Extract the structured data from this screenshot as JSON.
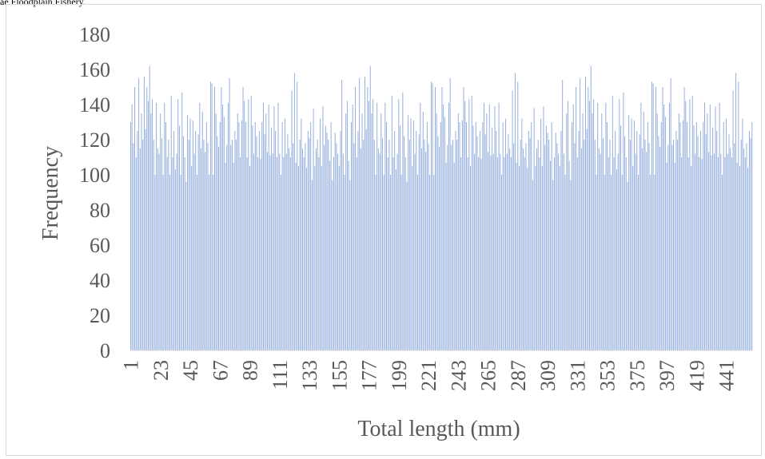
{
  "caption": "ae Floodplain Fishery.",
  "chart_data": {
    "type": "bar",
    "title": "",
    "xlabel": "Total length (mm)",
    "ylabel": "Frequency",
    "ylim": [
      0,
      180
    ],
    "y_ticks": [
      "0",
      "20",
      "40",
      "60",
      "80",
      "100",
      "120",
      "140",
      "160",
      "180"
    ],
    "x_tick_labels": [
      "1",
      "23",
      "45",
      "67",
      "89",
      "111",
      "133",
      "155",
      "177",
      "199",
      "221",
      "243",
      "265",
      "287",
      "309",
      "331",
      "353",
      "375",
      "397",
      "419",
      "441"
    ],
    "x_tick_start": 1,
    "x_tick_step": 22,
    "bar_count": 460,
    "grid": false,
    "legend": "none",
    "colors": {
      "bar": "#8faadc",
      "axis": "#d9d9d9",
      "text": "#595959"
    },
    "sample_values": [
      130,
      140,
      118,
      150,
      110,
      125,
      155,
      115,
      135,
      120,
      156,
      126,
      150,
      142,
      162,
      135,
      143,
      120,
      100,
      141,
      115,
      112,
      135,
      121,
      100,
      141,
      130,
      110,
      120,
      100,
      145,
      110,
      125,
      103,
      112,
      143,
      128,
      100,
      147,
      122,
      110,
      96,
      134,
      120,
      132,
      105,
      131,
      112,
      125,
      100,
      123,
      141,
      115,
      136,
      120,
      113,
      130,
      118,
      100,
      153,
      152,
      100,
      150,
      135,
      122,
      116,
      130,
      150,
      140,
      133,
      107,
      117,
      141,
      155,
      117,
      120,
      107,
      125,
      120,
      135,
      130,
      110,
      131,
      150,
      142,
      130,
      110,
      143,
      105,
      145,
      128,
      112,
      130,
      122,
      110,
      125,
      109,
      130,
      141,
      123,
      135,
      113,
      140,
      111,
      127,
      112,
      139,
      125,
      110,
      141,
      112,
      100,
      130,
      110,
      132,
      112,
      123,
      115,
      110,
      148,
      118,
      158,
      107,
      153,
      105,
      120,
      132,
      115,
      110,
      118,
      104,
      125,
      121,
      130,
      97,
      138,
      105,
      115,
      120,
      110,
      132,
      105,
      139,
      117,
      128,
      124,
      120,
      108,
      130,
      97,
      110,
      124,
      118,
      112,
      105,
      125,
      154,
      112,
      100,
      135,
      142,
      108,
      97
    ]
  }
}
